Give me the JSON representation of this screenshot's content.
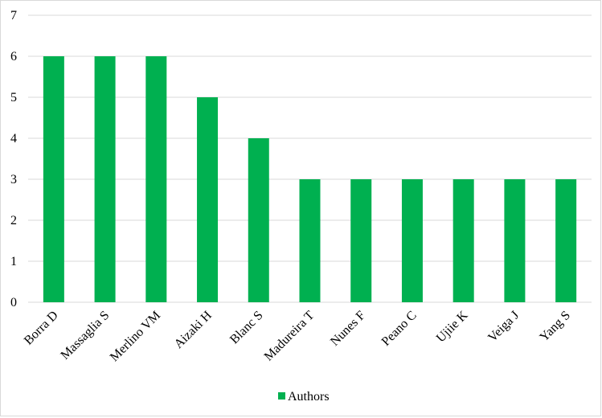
{
  "chart_data": {
    "type": "bar",
    "categories": [
      "Borra D",
      "Massaglia S",
      "Merlino VM",
      "Aizaki H",
      "Blanc S",
      "Madureira T",
      "Nunes F",
      "Peano C",
      "Ujiie K",
      "Veiga J",
      "Yang S"
    ],
    "series": [
      {
        "name": "Authors",
        "values": [
          6,
          6,
          6,
          5,
          4,
          3,
          3,
          3,
          3,
          3,
          3
        ]
      }
    ],
    "yticks": [
      "0",
      "1",
      "2",
      "3",
      "4",
      "5",
      "6",
      "7"
    ],
    "ylim": [
      0,
      7
    ],
    "grid": true,
    "legend_position": "bottom",
    "colors": {
      "bar": "#00b050",
      "grid": "#d9d9d9",
      "axis": "#d9d9d9"
    }
  }
}
